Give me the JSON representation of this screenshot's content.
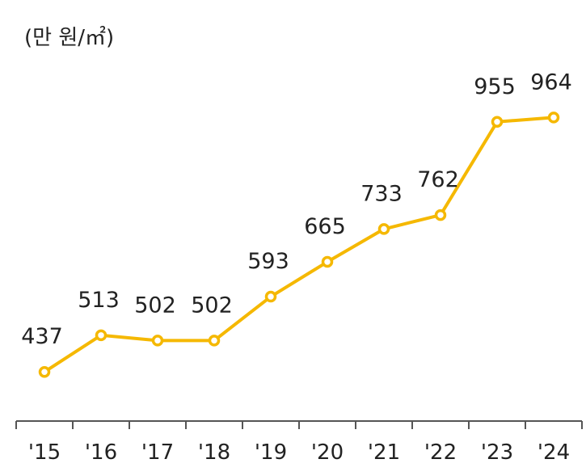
{
  "chart_data": {
    "type": "line",
    "unit_label": "(만 원/㎡)",
    "categories": [
      "'15",
      "'16",
      "'17",
      "'18",
      "'19",
      "'20",
      "'21",
      "'22",
      "'23",
      "'24"
    ],
    "values": [
      437,
      513,
      502,
      502,
      593,
      665,
      733,
      762,
      955,
      964
    ],
    "data_labels": [
      "437",
      "513",
      "502",
      "502",
      "593",
      "665",
      "733",
      "762",
      "955",
      "964"
    ],
    "ylim": [
      270,
      1040
    ],
    "grid": false,
    "legend": "none",
    "colors": {
      "line": "#F5B800",
      "marker_fill": "#ffffff",
      "axis": "#555555",
      "text": "#222222"
    }
  }
}
